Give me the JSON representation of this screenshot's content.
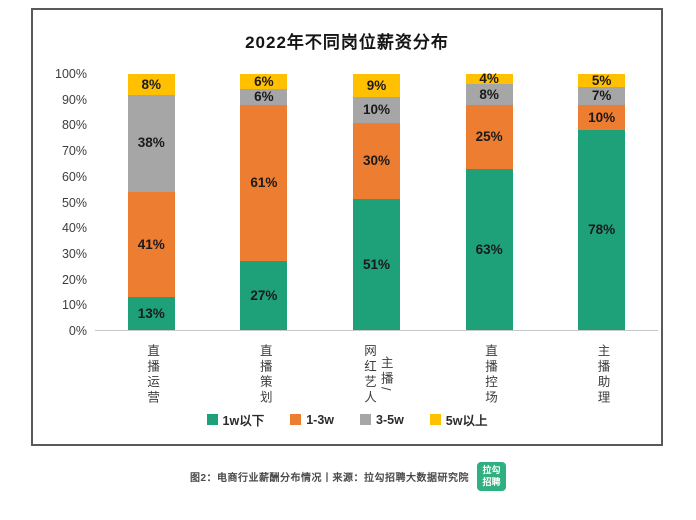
{
  "title": "2022年不同岗位薪资分布",
  "caption": {
    "text": "图2：电商行业薪酬分布情况丨来源：拉勾招聘大数据研究院",
    "logo_lines": [
      "拉勾",
      "招聘"
    ],
    "logo_color": "#2fb080"
  },
  "chart_data": {
    "type": "bar",
    "stacked": true,
    "title": "2022年不同岗位薪资分布",
    "categories": [
      "直播运营",
      "直播策划",
      "主播/网红艺人",
      "直播控场",
      "主播助理"
    ],
    "category_display_lines": [
      [
        "直播运营"
      ],
      [
        "直播策划"
      ],
      [
        "主播/",
        "网红艺人"
      ],
      [
        "直播控场"
      ],
      [
        "主播助理"
      ]
    ],
    "series": [
      {
        "name": "1w以下",
        "color": "#1ea078",
        "values": [
          13,
          27,
          51,
          63,
          78
        ]
      },
      {
        "name": "1-3w",
        "color": "#ed7d31",
        "values": [
          41,
          61,
          30,
          25,
          10
        ]
      },
      {
        "name": "3-5w",
        "color": "#a6a6a6",
        "values": [
          38,
          6,
          10,
          8,
          7
        ]
      },
      {
        "name": "5w以上",
        "color": "#ffc000",
        "values": [
          8,
          6,
          9,
          4,
          5
        ]
      }
    ],
    "value_suffix": "%",
    "y_ticks": [
      "0%",
      "10%",
      "20%",
      "30%",
      "40%",
      "50%",
      "60%",
      "70%",
      "80%",
      "90%",
      "100%"
    ],
    "ylim": [
      0,
      100
    ],
    "grid": false,
    "legend_position": "bottom"
  }
}
